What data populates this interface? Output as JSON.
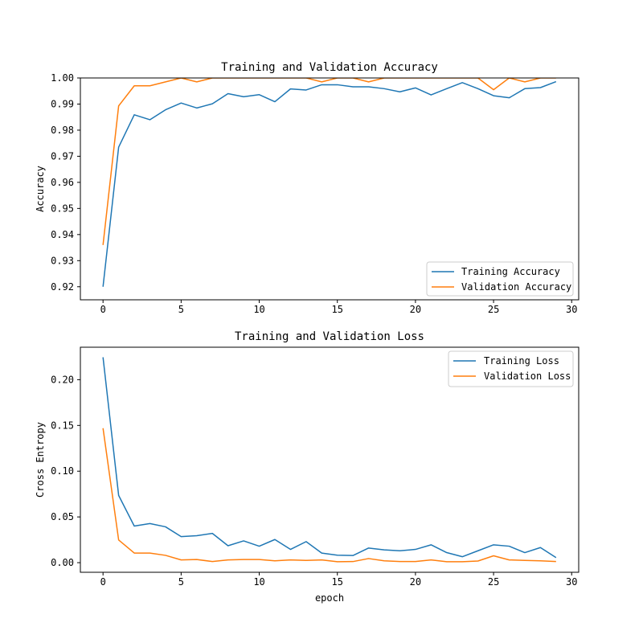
{
  "colors": {
    "training": "#1f77b4",
    "validation": "#ff7f0e",
    "axis": "#000000",
    "legend_border": "#cccccc"
  },
  "chart_data": [
    {
      "type": "line",
      "title": "Training and Validation Accuracy",
      "xlabel": "",
      "ylabel": "Accuracy",
      "xlim": [
        -1.45,
        30.45
      ],
      "ylim": [
        0.915,
        1.0
      ],
      "xticks": [
        0,
        5,
        10,
        15,
        20,
        25,
        30
      ],
      "xtick_labels": [
        "0",
        "5",
        "10",
        "15",
        "20",
        "25",
        "30"
      ],
      "yticks": [
        0.92,
        0.93,
        0.94,
        0.95,
        0.96,
        0.97,
        0.98,
        0.99,
        1.0
      ],
      "ytick_labels": [
        "0.92",
        "0.93",
        "0.94",
        "0.95",
        "0.96",
        "0.97",
        "0.98",
        "0.99",
        "1.00"
      ],
      "grid": false,
      "legend": "lower-right",
      "x": [
        0,
        1,
        2,
        3,
        4,
        5,
        6,
        7,
        8,
        9,
        10,
        11,
        12,
        13,
        14,
        15,
        16,
        17,
        18,
        19,
        20,
        21,
        22,
        23,
        24,
        25,
        26,
        27,
        28,
        29
      ],
      "series": [
        {
          "name": "Training Accuracy",
          "color_key": "training",
          "values": [
            0.92,
            0.9735,
            0.9859,
            0.984,
            0.9878,
            0.9904,
            0.9885,
            0.9901,
            0.994,
            0.9928,
            0.9936,
            0.9909,
            0.9958,
            0.9954,
            0.9974,
            0.9974,
            0.9966,
            0.9966,
            0.9959,
            0.9947,
            0.9962,
            0.9935,
            0.9959,
            0.9982,
            0.9959,
            0.9932,
            0.9924,
            0.9959,
            0.9963,
            0.9986
          ]
        },
        {
          "name": "Validation Accuracy",
          "color_key": "validation",
          "values": [
            0.936,
            0.9893,
            0.997,
            0.997,
            0.9985,
            1.0,
            0.9985,
            1.0,
            1.0,
            1.0,
            1.0,
            1.0,
            1.0,
            1.0,
            0.9985,
            1.0,
            1.0,
            0.9985,
            1.0,
            1.0,
            1.0,
            1.0,
            1.0,
            1.0,
            1.0,
            0.9955,
            1.0,
            0.9985,
            1.0,
            1.0
          ]
        }
      ]
    },
    {
      "type": "line",
      "title": "Training and Validation Loss",
      "xlabel": "epoch",
      "ylabel": "Cross Entropy",
      "xlim": [
        -1.45,
        30.45
      ],
      "ylim": [
        -0.0105,
        0.2355
      ],
      "xticks": [
        0,
        5,
        10,
        15,
        20,
        25,
        30
      ],
      "xtick_labels": [
        "0",
        "5",
        "10",
        "15",
        "20",
        "25",
        "30"
      ],
      "yticks": [
        0.0,
        0.05,
        0.1,
        0.15,
        0.2
      ],
      "ytick_labels": [
        "0.00",
        "0.05",
        "0.10",
        "0.15",
        "0.20"
      ],
      "grid": false,
      "legend": "upper-right",
      "x": [
        0,
        1,
        2,
        3,
        4,
        5,
        6,
        7,
        8,
        9,
        10,
        11,
        12,
        13,
        14,
        15,
        16,
        17,
        18,
        19,
        20,
        21,
        22,
        23,
        24,
        25,
        26,
        27,
        28,
        29
      ],
      "series": [
        {
          "name": "Training Loss",
          "color_key": "training",
          "values": [
            0.2245,
            0.0735,
            0.04,
            0.0428,
            0.0392,
            0.0285,
            0.0295,
            0.032,
            0.0185,
            0.0238,
            0.018,
            0.0253,
            0.0145,
            0.023,
            0.0105,
            0.0082,
            0.0078,
            0.016,
            0.014,
            0.013,
            0.0145,
            0.0195,
            0.011,
            0.0065,
            0.013,
            0.0195,
            0.018,
            0.011,
            0.0165,
            0.0055
          ]
        },
        {
          "name": "Validation Loss",
          "color_key": "validation",
          "values": [
            0.147,
            0.0248,
            0.0105,
            0.0105,
            0.008,
            0.003,
            0.0035,
            0.0012,
            0.003,
            0.0035,
            0.0035,
            0.002,
            0.003,
            0.0025,
            0.003,
            0.001,
            0.0012,
            0.0045,
            0.002,
            0.0012,
            0.0012,
            0.003,
            0.001,
            0.001,
            0.0018,
            0.0075,
            0.003,
            0.0025,
            0.002,
            0.0012
          ]
        }
      ]
    }
  ]
}
